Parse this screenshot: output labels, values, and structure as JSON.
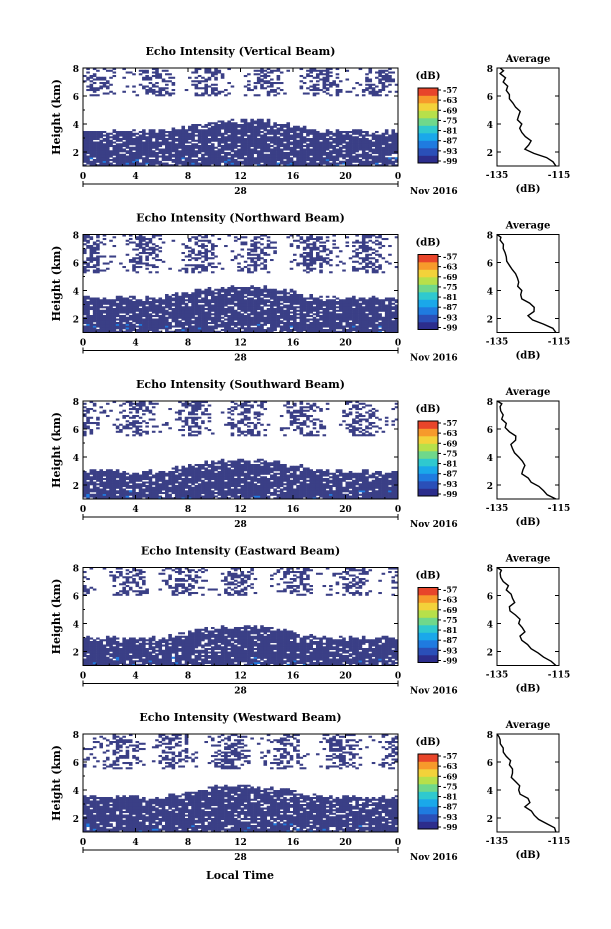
{
  "figure": {
    "xlabel_bottom": "Local Time",
    "date_day_label": "28",
    "date_suffix": "Nov 2016",
    "colorbar_unit": "(dB)",
    "colorbar_ticks": [
      "-57",
      "-63",
      "-69",
      "-75",
      "-81",
      "-87",
      "-93",
      "-99"
    ],
    "colormap": [
      "#2c2d8c",
      "#2a4fb8",
      "#1f7be0",
      "#1aa8ea",
      "#2fc9cf",
      "#6fd88b",
      "#b7e04a",
      "#f3d23a",
      "#f79a2b",
      "#e8452a"
    ],
    "echo_color": "#3a3f86"
  },
  "chart_data": [
    {
      "type": "heatmap",
      "title": "Echo Intensity (Vertical Beam)",
      "ylabel": "Height (km)",
      "xlim": [
        0,
        24
      ],
      "ylim": [
        1,
        8
      ],
      "xticks": [
        "0",
        "4",
        "8",
        "12",
        "16",
        "20",
        "0"
      ],
      "yticks": [
        "2",
        "4",
        "6",
        "8"
      ],
      "colorbar": {
        "unit": "(dB)",
        "range": [
          -99,
          -57
        ]
      },
      "echo_layers": [
        {
          "height_km": [
            1,
            4.3
          ],
          "coverage": "dense"
        },
        {
          "height_km": [
            6.0,
            8.0
          ],
          "coverage": "sparse"
        }
      ],
      "average_profile": {
        "title": "Average",
        "xlabel": "(dB)",
        "xlim": [
          -135,
          -115
        ],
        "xticks": [
          "-135",
          "-115"
        ],
        "yticks": [
          "2",
          "4",
          "6",
          "8"
        ],
        "height_km": [
          1.0,
          1.6,
          2.2,
          2.8,
          3.4,
          4.0,
          4.6,
          5.2,
          5.8,
          6.4,
          7.0,
          7.6,
          8.0
        ],
        "db": [
          -116,
          -119,
          -126,
          -124,
          -127,
          -127,
          -128,
          -129,
          -131,
          -132,
          -133,
          -134,
          -134
        ]
      }
    },
    {
      "type": "heatmap",
      "title": "Echo Intensity (Northward Beam)",
      "ylabel": "Height (km)",
      "xlim": [
        0,
        24
      ],
      "ylim": [
        1,
        8
      ],
      "xticks": [
        "0",
        "4",
        "8",
        "12",
        "16",
        "20",
        "0"
      ],
      "yticks": [
        "2",
        "4",
        "6",
        "8"
      ],
      "colorbar": {
        "unit": "(dB)",
        "range": [
          -99,
          -57
        ]
      },
      "echo_layers": [
        {
          "height_km": [
            1,
            4.3
          ],
          "coverage": "dense"
        },
        {
          "height_km": [
            5.2,
            8.0
          ],
          "coverage": "sparse"
        }
      ],
      "average_profile": {
        "title": "Average",
        "xlabel": "(dB)",
        "xlim": [
          -135,
          -115
        ],
        "xticks": [
          "-135",
          "-115"
        ],
        "yticks": [
          "2",
          "4",
          "6",
          "8"
        ],
        "height_km": [
          1.0,
          1.6,
          2.2,
          2.8,
          3.4,
          4.0,
          4.6,
          5.2,
          5.8,
          6.4,
          7.0,
          7.6,
          8.0
        ],
        "db": [
          -116,
          -120,
          -125,
          -123,
          -127,
          -127,
          -128,
          -129,
          -131,
          -132,
          -133,
          -134,
          -135
        ]
      }
    },
    {
      "type": "heatmap",
      "title": "Echo Intensity (Southward Beam)",
      "ylabel": "Height (km)",
      "xlim": [
        0,
        24
      ],
      "ylim": [
        1,
        8
      ],
      "xticks": [
        "0",
        "4",
        "8",
        "12",
        "16",
        "20",
        "0"
      ],
      "yticks": [
        "2",
        "4",
        "6",
        "8"
      ],
      "colorbar": {
        "unit": "(dB)",
        "range": [
          -99,
          -57
        ]
      },
      "echo_layers": [
        {
          "height_km": [
            1,
            3.8
          ],
          "coverage": "dense"
        },
        {
          "height_km": [
            5.5,
            8.0
          ],
          "coverage": "sparse"
        }
      ],
      "average_profile": {
        "title": "Average",
        "xlabel": "(dB)",
        "xlim": [
          -135,
          -115
        ],
        "xticks": [
          "-135",
          "-115"
        ],
        "yticks": [
          "2",
          "4",
          "6",
          "8"
        ],
        "height_km": [
          1.0,
          1.6,
          2.2,
          2.8,
          3.4,
          4.0,
          4.6,
          5.2,
          5.8,
          6.4,
          7.0,
          7.6,
          8.0
        ],
        "db": [
          -116,
          -120,
          -124,
          -127,
          -126,
          -128,
          -130,
          -129,
          -131,
          -132,
          -133,
          -134,
          -135
        ]
      }
    },
    {
      "type": "heatmap",
      "title": "Echo Intensity (Eastward Beam)",
      "ylabel": "Height (km)",
      "xlim": [
        0,
        24
      ],
      "ylim": [
        1,
        8
      ],
      "xticks": [
        "0",
        "4",
        "8",
        "12",
        "16",
        "20",
        "0"
      ],
      "yticks": [
        "2",
        "4",
        "6",
        "8"
      ],
      "colorbar": {
        "unit": "(dB)",
        "range": [
          -99,
          -57
        ]
      },
      "echo_layers": [
        {
          "height_km": [
            1,
            3.8
          ],
          "coverage": "dense"
        },
        {
          "height_km": [
            6.0,
            8.0
          ],
          "coverage": "sparse"
        }
      ],
      "average_profile": {
        "title": "Average",
        "xlabel": "(dB)",
        "xlim": [
          -135,
          -115
        ],
        "xticks": [
          "-135",
          "-115"
        ],
        "yticks": [
          "2",
          "4",
          "6",
          "8"
        ],
        "height_km": [
          1.0,
          1.6,
          2.2,
          2.8,
          3.4,
          4.0,
          4.6,
          5.2,
          5.8,
          6.4,
          7.0,
          7.6,
          8.0
        ],
        "db": [
          -116,
          -120,
          -124,
          -127,
          -126,
          -128,
          -129,
          -131,
          -130,
          -132,
          -133,
          -134,
          -135
        ]
      }
    },
    {
      "type": "heatmap",
      "title": "Echo Intensity (Westward Beam)",
      "ylabel": "Height (km)",
      "xlim": [
        0,
        24
      ],
      "ylim": [
        1,
        8
      ],
      "xticks": [
        "0",
        "4",
        "8",
        "12",
        "16",
        "20",
        "0"
      ],
      "yticks": [
        "2",
        "4",
        "6",
        "8"
      ],
      "colorbar": {
        "unit": "(dB)",
        "range": [
          -99,
          -57
        ]
      },
      "echo_layers": [
        {
          "height_km": [
            1,
            4.3
          ],
          "coverage": "dense"
        },
        {
          "height_km": [
            5.5,
            8.0
          ],
          "coverage": "sparse"
        }
      ],
      "average_profile": {
        "title": "Average",
        "xlabel": "(dB)",
        "xlim": [
          -135,
          -115
        ],
        "xticks": [
          "-135",
          "-115"
        ],
        "yticks": [
          "2",
          "4",
          "6",
          "8"
        ],
        "height_km": [
          1.0,
          1.6,
          2.2,
          2.8,
          3.4,
          4.0,
          4.6,
          5.2,
          5.8,
          6.4,
          7.0,
          7.6,
          8.0
        ],
        "db": [
          -116,
          -119,
          -123,
          -126,
          -125,
          -128,
          -129,
          -130,
          -131,
          -132,
          -133,
          -134,
          -135
        ]
      }
    }
  ]
}
